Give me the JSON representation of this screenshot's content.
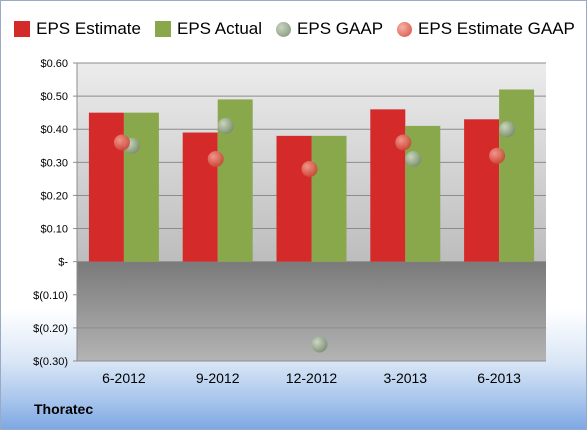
{
  "company": "Thoratec",
  "legend": {
    "eps_estimate": "EPS Estimate",
    "eps_actual": "EPS Actual",
    "eps_gaap": "EPS GAAP",
    "eps_estimate_gaap": "EPS Estimate GAAP"
  },
  "colors": {
    "estimate": "#d42a2a",
    "actual": "#89a84b",
    "gaap_dot": "#8fa482",
    "estimate_gaap_dot": "#e06a5a"
  },
  "chart_data": {
    "type": "bar",
    "categories": [
      "6-2012",
      "9-2012",
      "12-2012",
      "3-2013",
      "6-2013"
    ],
    "series": [
      {
        "name": "EPS Estimate",
        "values": [
          0.45,
          0.39,
          0.38,
          0.46,
          0.43
        ]
      },
      {
        "name": "EPS Actual",
        "values": [
          0.45,
          0.49,
          0.38,
          0.41,
          0.52
        ]
      },
      {
        "name": "EPS GAAP",
        "values": [
          0.35,
          0.41,
          -0.25,
          0.31,
          0.4
        ]
      },
      {
        "name": "EPS Estimate GAAP",
        "values": [
          0.36,
          0.31,
          0.28,
          0.36,
          0.32
        ]
      }
    ],
    "ylim": [
      -0.3,
      0.6
    ],
    "yticks": [
      0.6,
      0.5,
      0.4,
      0.3,
      0.2,
      0.1,
      0.0,
      -0.1,
      -0.2,
      -0.3
    ],
    "ytick_labels": [
      "$0.60",
      "$0.50",
      "$0.40",
      "$0.30",
      "$0.20",
      "$0.10",
      "$-",
      "$(0.10)",
      "$(0.20)",
      "$(0.30)"
    ],
    "grid": true,
    "legend_position": "top"
  }
}
